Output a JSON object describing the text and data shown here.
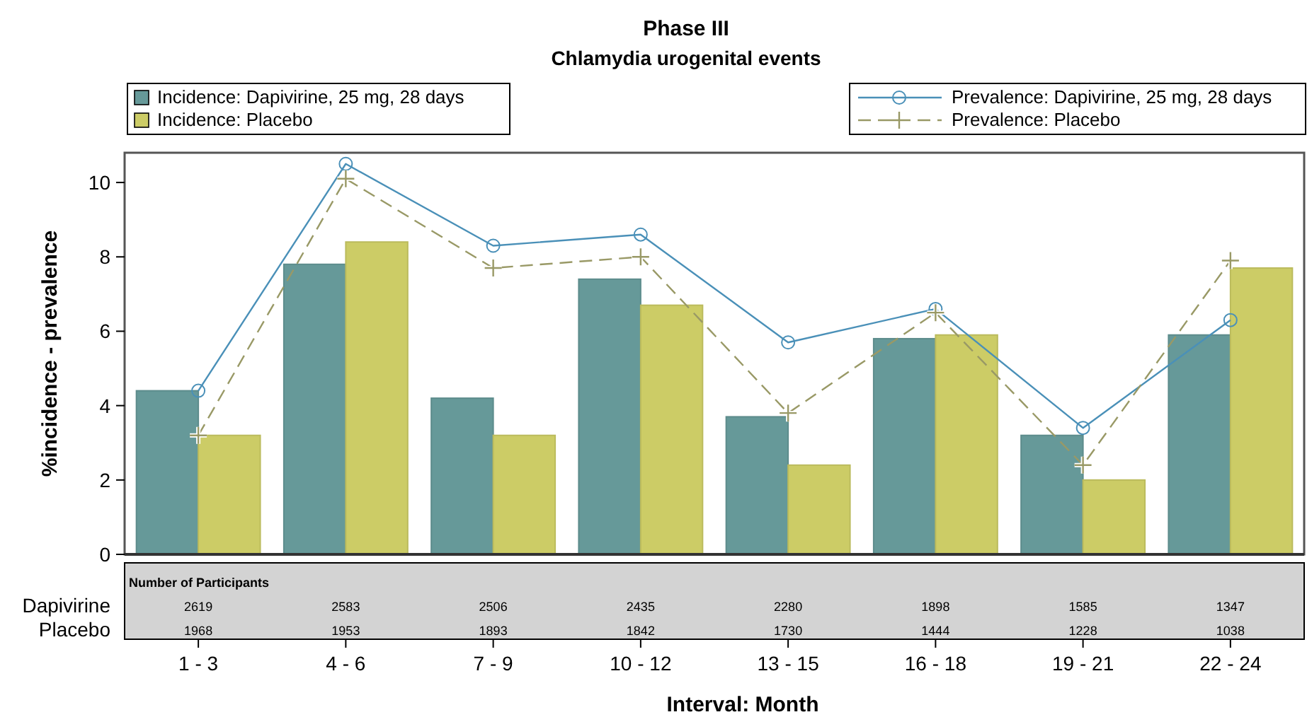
{
  "chart_data": {
    "type": "bar",
    "title": "Phase III",
    "subtitle": "Chlamydia urogenital events",
    "xlabel": "Interval: Month",
    "ylabel": "%incidence - prevalence",
    "categories": [
      "1 - 3",
      "4 - 6",
      "7 - 9",
      "10 - 12",
      "13 - 15",
      "16 - 18",
      "19 - 21",
      "22 - 24"
    ],
    "series": [
      {
        "name": "Incidence: Dapivirine, 25 mg, 28 days",
        "color": "#669999",
        "values": [
          4.4,
          7.8,
          4.2,
          7.4,
          3.7,
          5.8,
          3.2,
          5.9
        ]
      },
      {
        "name": "Incidence: Placebo",
        "color": "#cccc66",
        "values": [
          3.2,
          8.4,
          3.2,
          6.7,
          2.4,
          5.9,
          2.0,
          7.7
        ]
      },
      {
        "name": "Prevalence: Dapivirine, 25 mg, 28 days",
        "type": "line",
        "color": "#4a90b8",
        "marker": "circle",
        "line_style": "solid",
        "values": [
          4.4,
          10.5,
          8.3,
          8.6,
          5.7,
          6.6,
          3.4,
          6.3
        ]
      },
      {
        "name": "Prevalence: Placebo",
        "type": "line",
        "color": "#999966",
        "marker": "cross",
        "line_style": "dashed",
        "values": [
          3.2,
          10.1,
          7.7,
          8.0,
          3.8,
          6.5,
          2.4,
          7.9
        ]
      }
    ],
    "ylim": [
      0,
      10.8
    ],
    "yticks": [
      0,
      2,
      4,
      6,
      8,
      10
    ],
    "grid": false,
    "legend": "top",
    "annotations": [
      "Number of Participants",
      "Dapivirine",
      "2619",
      "2583",
      "2506",
      "2435",
      "2280",
      "1898",
      "1585",
      "1347",
      "Placebo",
      "1968",
      "1953",
      "1893",
      "1842",
      "1730",
      "1444",
      "1228",
      "1038"
    ]
  }
}
